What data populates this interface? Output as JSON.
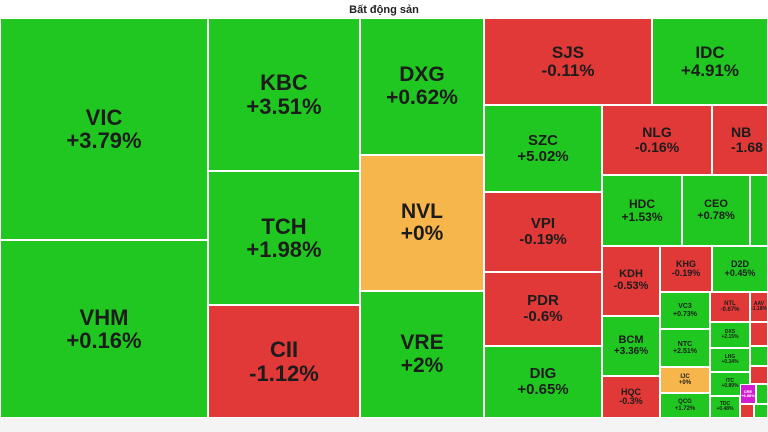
{
  "title": "Bất động sản",
  "colors": {
    "up": "#21c721",
    "down": "#e13838",
    "flat": "#f7b64b",
    "ceiling": "#d21cd2"
  },
  "tiles": [
    {
      "symbol": "VIC",
      "change": "+3.79%"
    },
    {
      "symbol": "VHM",
      "change": "+0.16%"
    },
    {
      "symbol": "KBC",
      "change": "+3.51%"
    },
    {
      "symbol": "TCH",
      "change": "+1.98%"
    },
    {
      "symbol": "CII",
      "change": "-1.12%"
    },
    {
      "symbol": "DXG",
      "change": "+0.62%"
    },
    {
      "symbol": "NVL",
      "change": "+0%"
    },
    {
      "symbol": "VRE",
      "change": "+2%"
    },
    {
      "symbol": "SJS",
      "change": "-0.11%"
    },
    {
      "symbol": "IDC",
      "change": "+4.91%"
    },
    {
      "symbol": "SZC",
      "change": "+5.02%"
    },
    {
      "symbol": "NLG",
      "change": "-0.16%"
    },
    {
      "symbol": "NB",
      "change": "-1.68"
    },
    {
      "symbol": "VPI",
      "change": "-0.19%"
    },
    {
      "symbol": "HDC",
      "change": "+1.53%"
    },
    {
      "symbol": "CEO",
      "change": "+0.78%"
    },
    {
      "symbol": "PDR",
      "change": "-0.6%"
    },
    {
      "symbol": "KDH",
      "change": "-0.53%"
    },
    {
      "symbol": "KHG",
      "change": "-0.19%"
    },
    {
      "symbol": "D2D",
      "change": "+0.45%"
    },
    {
      "symbol": "DIG",
      "change": "+0.65%"
    },
    {
      "symbol": "BCM",
      "change": "+3.36%"
    },
    {
      "symbol": "VC3",
      "change": "+0.73%"
    },
    {
      "symbol": "NTL",
      "change": "-0.67%"
    },
    {
      "symbol": "AAV",
      "change": "-1.18%"
    },
    {
      "symbol": "NTC",
      "change": "+2.51%"
    },
    {
      "symbol": "DXS",
      "change": "+2.15%"
    },
    {
      "symbol": "LHG",
      "change": "+0.34%"
    },
    {
      "symbol": "HQC",
      "change": "-0.3%"
    },
    {
      "symbol": "IJC",
      "change": "+0%"
    },
    {
      "symbol": "ITC",
      "change": "+0.89%"
    },
    {
      "symbol": "QCG",
      "change": "+1.72%"
    },
    {
      "symbol": "TDC",
      "change": "+0.48%"
    },
    {
      "symbol": "CRE",
      "change": "+6.88%"
    }
  ]
}
